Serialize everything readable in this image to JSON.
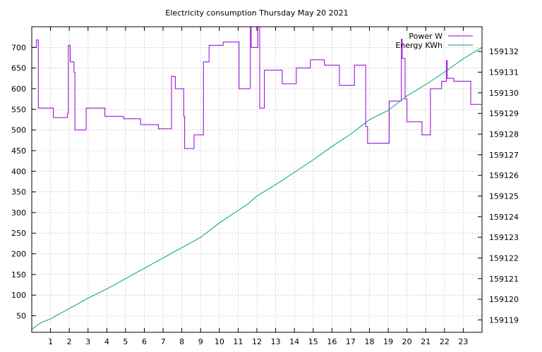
{
  "chart_data": {
    "type": "line",
    "title": "Electricity consumption Thursday May 20 2021",
    "xlabel": "",
    "ylabel": "",
    "xlim": [
      0,
      24
    ],
    "ylim": [
      10,
      750
    ],
    "y2lim": [
      159118.4,
      159133.2
    ],
    "grid": true,
    "legend_position": "top-right",
    "x_ticks": [
      1,
      2,
      3,
      4,
      5,
      6,
      7,
      8,
      9,
      10,
      11,
      12,
      13,
      14,
      15,
      16,
      17,
      18,
      19,
      20,
      21,
      22,
      23
    ],
    "y_ticks": [
      50,
      100,
      150,
      200,
      250,
      300,
      350,
      400,
      450,
      500,
      550,
      600,
      650,
      700
    ],
    "y2_ticks": [
      159119,
      159120,
      159121,
      159122,
      159123,
      159124,
      159125,
      159126,
      159127,
      159128,
      159129,
      159130,
      159131,
      159132
    ],
    "series": [
      {
        "name": "Power W",
        "axis": "y",
        "color": "#9400d3",
        "step": true,
        "x": [
          0,
          0.25,
          0.35,
          1.15,
          1.9,
          1.95,
          2.05,
          2.25,
          2.3,
          2.35,
          2.9,
          3.9,
          4.9,
          5.8,
          6.75,
          7.45,
          7.65,
          8.1,
          8.15,
          8.65,
          9.15,
          9.45,
          10.2,
          11.05,
          11.65,
          11.7,
          12.05,
          12.15,
          12.4,
          13.35,
          14.1,
          14.85,
          15.6,
          16.4,
          17.2,
          17.8,
          17.9,
          18.95,
          19.05,
          19.7,
          19.75,
          19.9,
          20.0,
          20.8,
          21.25,
          21.85,
          22.1,
          22.15,
          22.25,
          22.5,
          23.4,
          24.0
        ],
        "values": [
          700,
          718,
          553,
          530,
          540,
          705,
          665,
          640,
          500,
          500,
          553,
          533,
          527,
          513,
          503,
          630,
          600,
          533,
          455,
          488,
          665,
          705,
          713,
          600,
          760,
          700,
          760,
          553,
          645,
          612,
          650,
          670,
          657,
          608,
          657,
          508,
          468,
          468,
          570,
          720,
          673,
          575,
          520,
          488,
          600,
          618,
          668,
          625,
          625,
          618,
          562,
          562
        ]
      },
      {
        "name": "Energy KWh",
        "axis": "y2",
        "color": "#009e73",
        "step": false,
        "x": [
          0,
          0.5,
          1.0,
          2.0,
          3.0,
          4.0,
          5.0,
          6.0,
          7.0,
          8.0,
          9.0,
          10.0,
          11.0,
          11.5,
          12.0,
          13.0,
          14.0,
          15.0,
          16.0,
          17.0,
          18.0,
          19.0,
          20.0,
          21.0,
          22.0,
          23.0,
          24.0
        ],
        "values": [
          159118.55,
          159118.87,
          159119.05,
          159119.55,
          159120.05,
          159120.5,
          159121.0,
          159121.5,
          159122.0,
          159122.5,
          159123.0,
          159123.7,
          159124.3,
          159124.6,
          159125.0,
          159125.55,
          159126.15,
          159126.75,
          159127.4,
          159128.0,
          159128.7,
          159129.15,
          159129.85,
          159130.4,
          159131.0,
          159131.65,
          159132.2
        ]
      }
    ]
  }
}
